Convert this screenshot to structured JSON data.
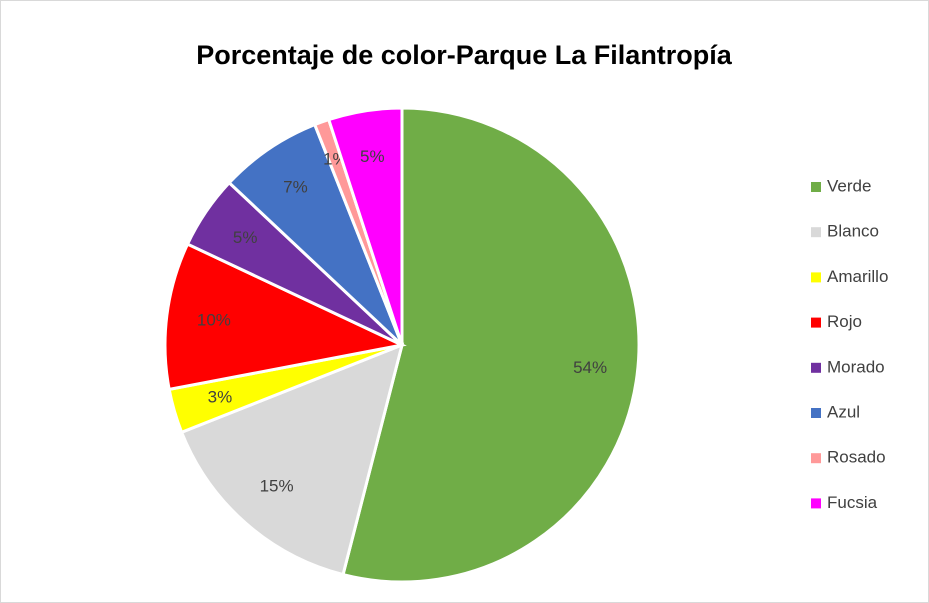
{
  "chart_data": {
    "type": "pie",
    "title": "Porcentaje de color-Parque La Filantropía",
    "categories": [
      "Verde",
      "Blanco",
      "Amarillo",
      "Rojo",
      "Morado",
      "Azul",
      "Rosado",
      "Fucsia"
    ],
    "values": [
      54,
      15,
      3,
      10,
      5,
      7,
      1,
      5
    ],
    "value_labels": [
      "54%",
      "15%",
      "3%",
      "10%",
      "5%",
      "7%",
      "1%",
      "5%"
    ],
    "colors": [
      "#70ad47",
      "#d9d9d9",
      "#ffff00",
      "#ff0000",
      "#7030a0",
      "#4472c4",
      "#ff9999",
      "#ff00ff"
    ],
    "legend": "right"
  }
}
